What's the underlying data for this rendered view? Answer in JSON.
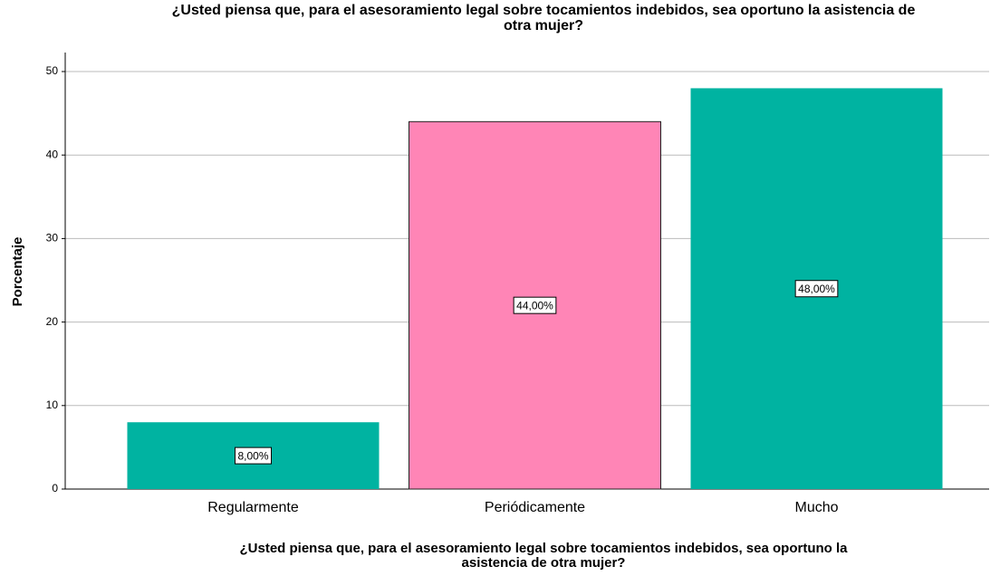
{
  "chart_data": {
    "type": "bar",
    "title": [
      "¿Usted piensa que, para el asesoramiento legal sobre tocamientos indebidos, sea oportuno la asistencia de",
      "otra mujer?"
    ],
    "xlabel": [
      "¿Usted piensa que, para el asesoramiento legal sobre tocamientos indebidos, sea oportuno la",
      "asistencia de otra mujer?"
    ],
    "ylabel": "Porcentaje",
    "categories": [
      "Regularmente",
      "Periódicamente",
      "Mucho"
    ],
    "values": [
      8,
      44,
      48
    ],
    "value_labels": [
      "8,00%",
      "44,00%",
      "48,00%"
    ],
    "colors": [
      "#00b3a1",
      "#ff85b6",
      "#00b3a1"
    ],
    "ylim": [
      0,
      50
    ],
    "yticks": [
      0,
      10,
      20,
      30,
      40,
      50
    ],
    "grid": true
  }
}
